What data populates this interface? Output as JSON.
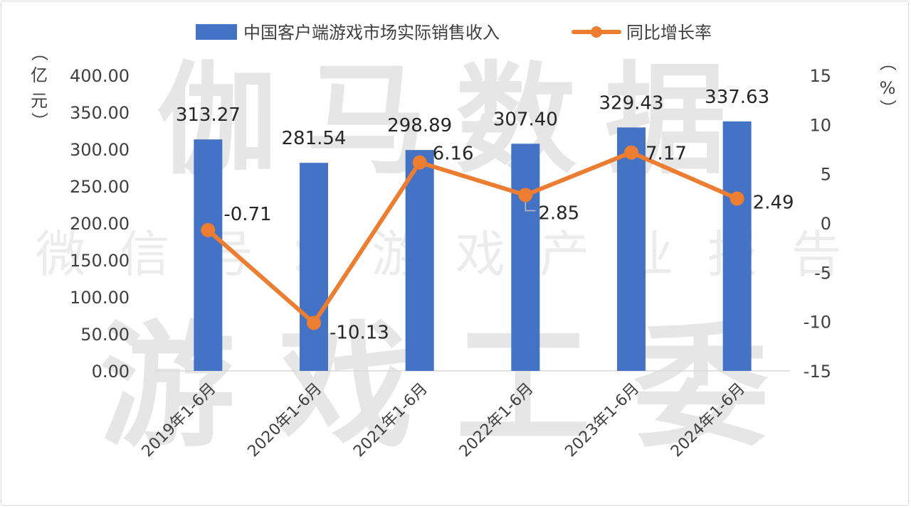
{
  "watermark": {
    "line1": "伽马数据",
    "line2": "微信号：游戏产业报告",
    "line3": "游戏工委"
  },
  "colors": {
    "bar": "#4472C4",
    "line": "#ED7D31",
    "axis": "#d9d9d9",
    "text": "#404040"
  },
  "chart_data": {
    "type": "bar",
    "categories": [
      "2019年1-6月",
      "2020年1-6月",
      "2021年1-6月",
      "2022年1-6月",
      "2023年1-6月",
      "2024年1-6月"
    ],
    "series": [
      {
        "name": "中国客户端游戏市场实际销售收入",
        "type": "bar",
        "axis": "left",
        "values": [
          313.27,
          281.54,
          298.89,
          307.4,
          329.43,
          337.63
        ],
        "labels": [
          "313.27",
          "281.54",
          "298.89",
          "307.40",
          "329.43",
          "337.63"
        ]
      },
      {
        "name": "同比增长率",
        "type": "line",
        "axis": "right",
        "values": [
          -0.71,
          -10.13,
          6.16,
          2.85,
          7.17,
          2.49
        ],
        "labels": [
          "-0.71",
          "-10.13",
          "6.16",
          "2.85",
          "7.17",
          "2.49"
        ]
      }
    ],
    "y_left": {
      "label": "亿元",
      "label_chars": [
        "（",
        "亿",
        "元",
        "）"
      ],
      "ylim": [
        0,
        400
      ],
      "ticks": [
        "0.00",
        "50.00",
        "100.00",
        "150.00",
        "200.00",
        "250.00",
        "300.00",
        "350.00",
        "400.00"
      ]
    },
    "y_right": {
      "label": "%",
      "label_chars": [
        "（",
        "%",
        "）"
      ],
      "ylim": [
        -15,
        15
      ],
      "ticks": [
        "-15",
        "-10",
        "-5",
        "0",
        "5",
        "10",
        "15"
      ]
    },
    "legend_position": "top",
    "grid": false
  }
}
